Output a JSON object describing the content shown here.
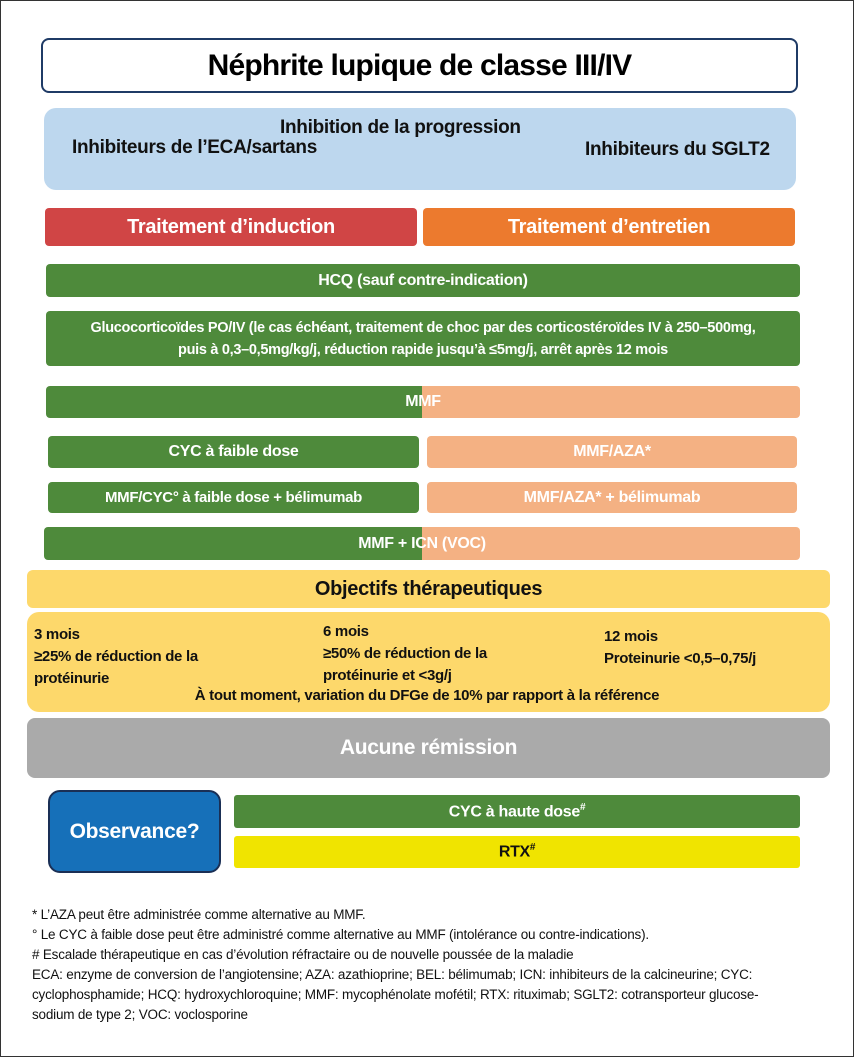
{
  "title": "Néphrite lupique de classe III/IV",
  "progression": {
    "heading": "Inhibition de la progression",
    "left": "Inhibiteurs de l’ECA/sartans",
    "right": "Inhibiteurs du SGLT2"
  },
  "phases": {
    "induction": "Traitement d’induction",
    "maintenance": "Traitement d’entretien"
  },
  "treatments": {
    "hcq": "HCQ (sauf contre-indication)",
    "glucocorticoids": [
      "Glucocorticoïdes PO/IV (le cas échéant, traitement de choc par des corticostéroïdes IV à 250–500mg,",
      "puis à 0,3–0,5mg/kg/j, réduction rapide jusqu’à ≤5mg/j, arrêt après 12 mois"
    ],
    "mmf": "MMF",
    "rows": [
      {
        "induction": "CYC à faible dose",
        "maintenance": "MMF/AZA*"
      },
      {
        "induction": "MMF/CYC° à faible dose + bélimumab",
        "maintenance": "MMF/AZA* + bélimumab"
      }
    ],
    "mmf_icn": "MMF + ICN (VOC)"
  },
  "goals": {
    "heading": "Objectifs thérapeutiques",
    "items": [
      {
        "time": "3 mois",
        "lines": [
          "≥25% de réduction de la",
          "protéinurie"
        ]
      },
      {
        "time": "6 mois",
        "lines": [
          "≥50% de réduction de la",
          "protéinurie et <3g/j"
        ]
      },
      {
        "time": "12 mois",
        "lines": [
          "Proteinurie <0,5–0,75/j"
        ]
      }
    ],
    "anytime": "À tout moment, variation du DFGe de 10% par rapport à la référence"
  },
  "no_remission": "Aucune rémission",
  "adherence": "Observance?",
  "escalation": [
    {
      "text": "CYC à haute dose",
      "sup": "#"
    },
    {
      "text": "RTX",
      "sup": "#"
    }
  ],
  "footnotes": [
    "* L’AZA peut être administrée comme alternative au MMF.",
    "° Le CYC à faible dose peut être administré comme alternative au MMF (intolérance ou contre-indications).",
    "# Escalade thérapeutique en cas d’évolution réfractaire ou de nouvelle poussée de la maladie",
    "ECA: enzyme de conversion de l’angiotensine; AZA: azathioprine; BEL: bélimumab; ICN: inhibiteurs de la calcineurine; CYC:",
    "cyclophosphamide; HCQ: hydroxychloroquine; MMF: mycophénolate mofétil; RTX: rituximab; SGLT2: cotransporteur glucose-",
    "sodium de type 2; VOC: voclosporine"
  ]
}
